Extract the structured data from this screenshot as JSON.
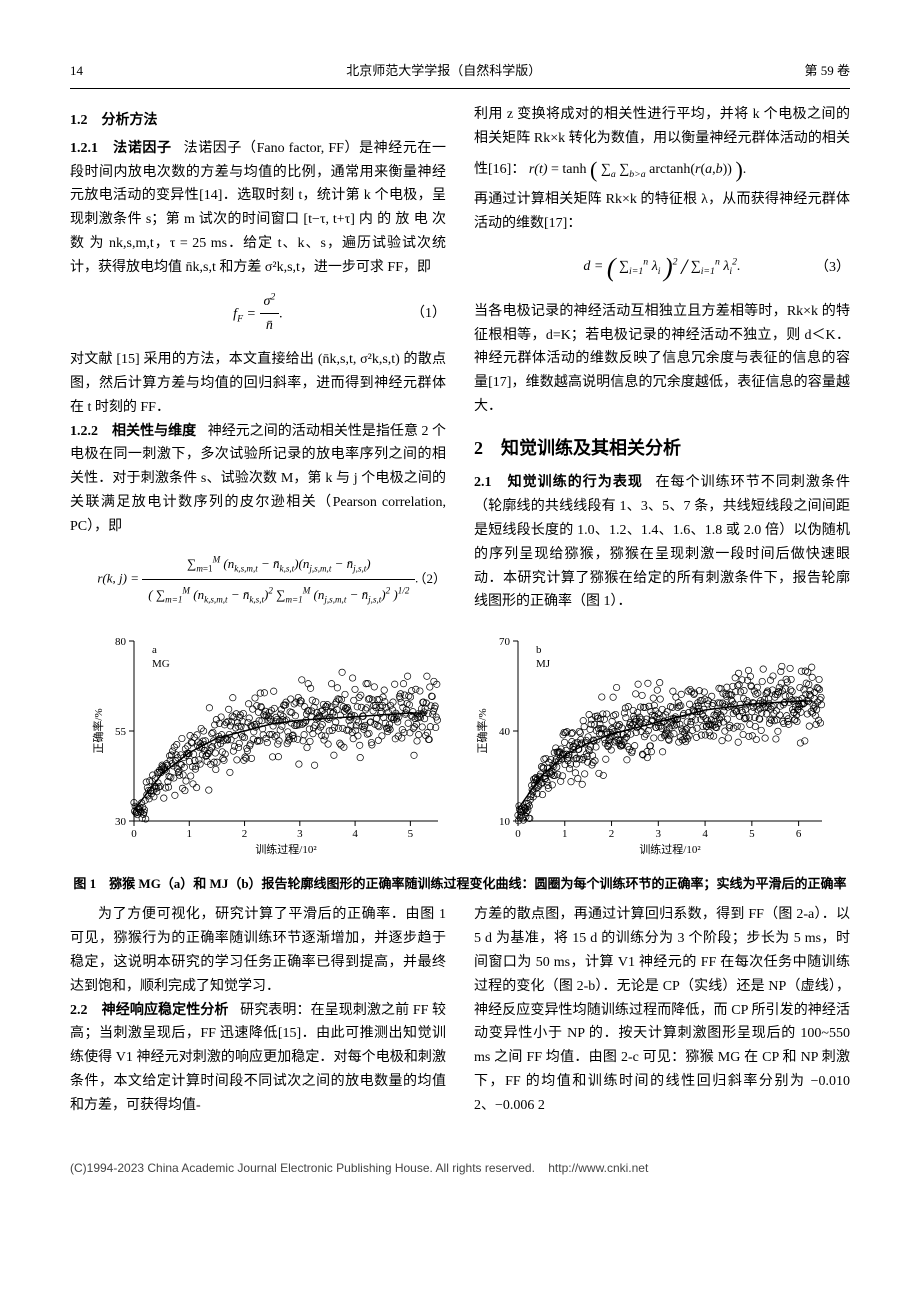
{
  "header": {
    "page_no": "14",
    "journal": "北京师范大学学报（自然科学版）",
    "volume": "第 59 卷"
  },
  "sec12_title": "1.2　分析方法",
  "p121_label": "1.2.1　法诺因子",
  "p121_body": "法诺因子（Fano factor, FF）是神经元在一段时间内放电次数的方差与均值的比例，通常用来衡量神经元放电活动的变异性[14]．选取时刻 t，统计第 k 个电极，呈现刺激条件 s；第 m 试次的时间窗口 [t−τ, t+τ] 内 的 放 电 次 数 为 nk,s,m,t，τ = 25 ms．给定 t、k、s，遍历试验试次统计，获得放电均值 n̄k,s,t 和方差 σ²k,s,t，进一步可求 FF，即",
  "eq1": {
    "text": "fF = σ² / n̄ .",
    "no": "（1）"
  },
  "p121_after": "对文献 [15] 采用的方法，本文直接给出 (n̄k,s,t, σ²k,s,t) 的散点图，然后计算方差与均值的回归斜率，进而得到神经元群体在 t 时刻的 FF．",
  "p122_label": "1.2.2　相关性与维度",
  "p122_body1": "神经元之间的活动相关性是指任意 2 个电极在同一刺激下，多次试验所记录的放电率序列之间的相关性．对于刺激条件 s、试验次数 M，第 k 与 j 个电极之间的关联满足放电计数序列的皮尔逊相关（Pearson correlation, PC），即",
  "eq2_no": "（2）",
  "p122_body2a": "利用 z 变换将成对的相关性进行平均，并将 k 个电极之间的相关矩阵 Rk×k 转化为数值，用以衡量神经元群体活动的相关性[16]：",
  "eq_rt": "r(t) = tanh( ∑a ∑b>a arctanh(r(a,b)) ).",
  "p122_body2b": "再通过计算相关矩阵 Rk×k 的特征根 λ，从而获得神经元群体活动的维数[17]：",
  "eq3_no": "（3）",
  "p122_body3": "当各电极记录的神经活动互相独立且方差相等时，Rk×k 的特征根相等，d=K；若电极记录的神经活动不独立，则 d＜K．神经元群体活动的维数反映了信息冗余度与表征的信息的容量[17]，维数越高说明信息的冗余度越低，表征信息的容量越大．",
  "sec2_title": "2　知觉训练及其相关分析",
  "p21_label": "2.1　知觉训练的行为表现",
  "p21_body": "在每个训练环节不同刺激条件（轮廓线的共线线段有 1、3、5、7 条，共线短线段之间间距是短线段长度的 1.0、1.2、1.4、1.6、1.8 或 2.0 倍）以伪随机的序列呈现给猕猴，猕猴在呈现刺激一段时间后做快速眼动．本研究计算了猕猴在给定的所有刺激条件下，报告轮廓线图形的正确率（图 1）．",
  "fig1": {
    "caption": "图 1　猕猴 MG（a）和 MJ（b）报告轮廓线图形的正确率随训练过程变化曲线：圆圈为每个训练环节的正确率；实线为平滑后的正确率",
    "xlabel": "训练过程/10²",
    "ylabel": "正确率/%",
    "panel_a": {
      "label": "a\nMG",
      "xlim": [
        0,
        5.5
      ],
      "xticks": [
        0,
        1,
        2,
        3,
        4,
        5
      ],
      "ylim": [
        30,
        80
      ],
      "yticks": [
        30,
        55,
        80
      ],
      "marker": "circle",
      "marker_stroke": "#000000",
      "marker_fill": "none",
      "marker_size": 3.2,
      "line_color": "#000000",
      "line_width": 1.2,
      "background": "#ffffff",
      "n_points": 520,
      "trend": [
        [
          0,
          33
        ],
        [
          0.5,
          43
        ],
        [
          1.0,
          49
        ],
        [
          1.5,
          53
        ],
        [
          2.0,
          55
        ],
        [
          2.5,
          57
        ],
        [
          3.0,
          58
        ],
        [
          3.5,
          58.5
        ],
        [
          4.0,
          59
        ],
        [
          4.5,
          59.5
        ],
        [
          5.0,
          60
        ],
        [
          5.3,
          60
        ]
      ],
      "spread": 12
    },
    "panel_b": {
      "label": "b\nMJ",
      "xlim": [
        0,
        6.5
      ],
      "xticks": [
        0,
        1,
        2,
        3,
        4,
        5,
        6
      ],
      "ylim": [
        10,
        70
      ],
      "yticks": [
        10,
        40,
        70
      ],
      "marker": "circle",
      "marker_stroke": "#000000",
      "marker_fill": "none",
      "marker_size": 3.2,
      "line_color": "#000000",
      "line_width": 1.2,
      "background": "#ffffff",
      "n_points": 620,
      "trend": [
        [
          0,
          14
        ],
        [
          0.5,
          25
        ],
        [
          1.0,
          32
        ],
        [
          1.5,
          36
        ],
        [
          2.0,
          39
        ],
        [
          2.5,
          41
        ],
        [
          3.0,
          43
        ],
        [
          3.5,
          45
        ],
        [
          4.0,
          47
        ],
        [
          4.5,
          48
        ],
        [
          5.0,
          49
        ],
        [
          5.5,
          49.5
        ],
        [
          6.0,
          50
        ],
        [
          6.3,
          50
        ]
      ],
      "spread": 14
    }
  },
  "after_fig_left": "为了方便可视化，研究计算了平滑后的正确率．由图 1 可见，猕猴行为的正确率随训练环节逐渐增加，并逐步趋于稳定，这说明本研究的学习任务正确率已得到提高，并最终达到饱和，顺利完成了知觉学习．",
  "p22_label": "2.2　神经响应稳定性分析",
  "p22_left": "研究表明：在呈现刺激之前 FF 较高；当刺激呈现后，FF 迅速降低[15]．由此可推测出知觉训练使得 V1 神经元对刺激的响应更加稳定．对每个电极和刺激条件，本文给定计算时间段不同试次之间的放电数量的均值和方差，可获得均值-",
  "p22_right": "方差的散点图，再通过计算回归系数，得到 FF（图 2-a）．以 5 d 为基准，将 15 d 的训练分为 3 个阶段；步长为 5 ms，时间窗口为 50 ms，计算 V1 神经元的 FF 在每次任务中随训练过程的变化（图 2-b）．无论是 CP（实线）还是 NP（虚线），神经反应变异性均随训练过程而降低，而 CP 所引发的神经活动变异性小于 NP 的．按天计算刺激图形呈现后的 100~550 ms 之间 FF 均值．由图 2-c 可见：猕猴 MG 在 CP 和 NP 刺激下，FF 的均值和训练时间的线性回归斜率分别为 −0.010 2、−0.006 2",
  "footer": {
    "left": "(C)1994-2023 China Academic Journal Electronic Publishing House. All rights reserved.",
    "right": "http://www.cnki.net"
  }
}
